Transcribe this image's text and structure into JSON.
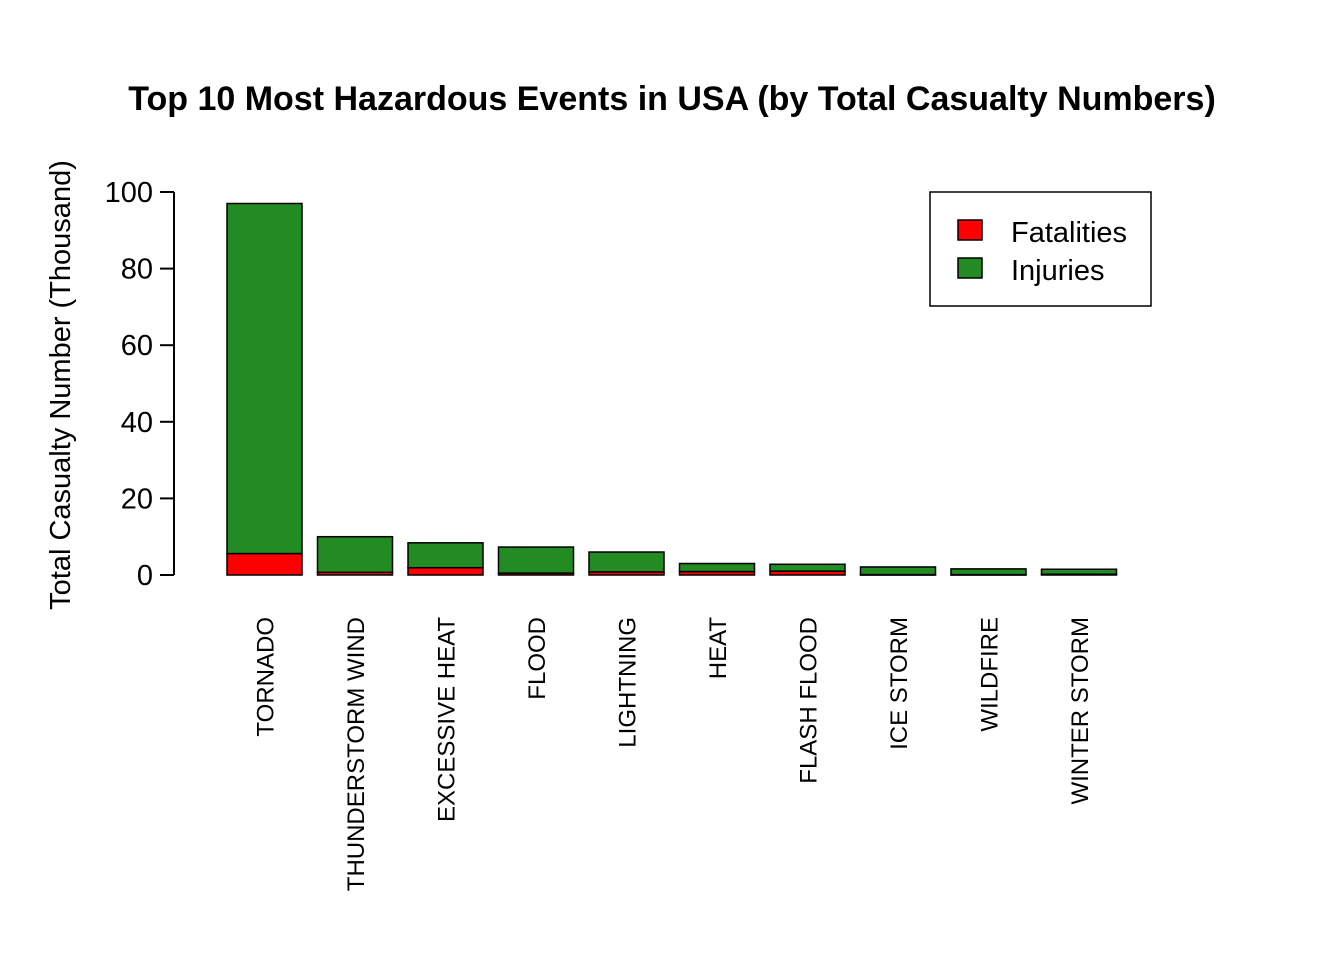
{
  "chart_data": {
    "type": "bar",
    "stacked": true,
    "title": "Top 10 Most Hazardous Events in USA (by Total Casualty Numbers)",
    "xlabel": "",
    "ylabel": "Total Casualty Number (Thousand)",
    "ylim": [
      0,
      100
    ],
    "yticks": [
      "0",
      "20",
      "40",
      "60",
      "80",
      "100"
    ],
    "categories": [
      "TORNADO",
      "THUNDERSTORM WIND",
      "EXCESSIVE HEAT",
      "FLOOD",
      "LIGHTNING",
      "HEAT",
      "FLASH FLOOD",
      "ICE STORM",
      "WILDFIRE",
      "WINTER STORM"
    ],
    "series": [
      {
        "name": "Fatalities",
        "color": "#FF0000",
        "values": [
          5.6,
          0.7,
          1.9,
          0.5,
          0.8,
          0.9,
          1.0,
          0.1,
          0.1,
          0.2
        ]
      },
      {
        "name": "Injuries",
        "color": "#228B22",
        "values": [
          91.4,
          9.3,
          6.5,
          6.8,
          5.2,
          2.1,
          1.8,
          2.0,
          1.5,
          1.3
        ]
      }
    ],
    "legend_position": "top-right",
    "grid": false
  }
}
